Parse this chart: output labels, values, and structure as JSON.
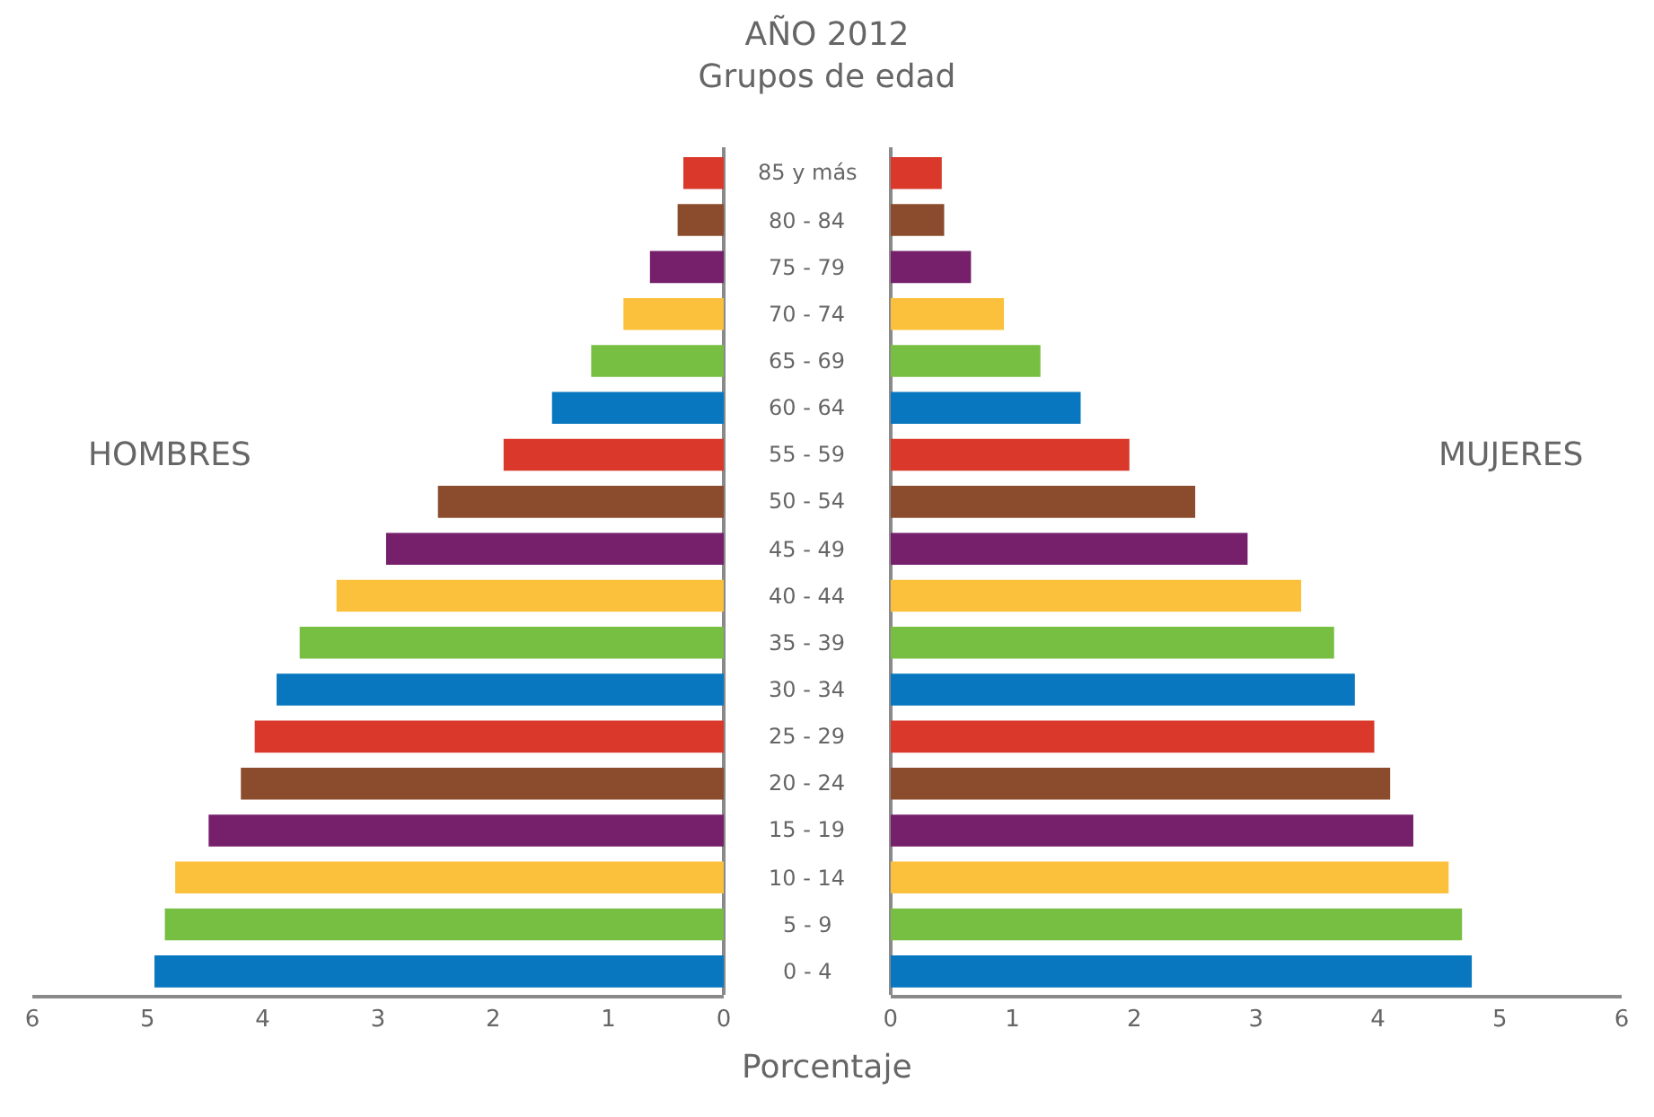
{
  "chart_data": [
    {
      "type": "bar",
      "orientation": "horizontal",
      "title": "AÑO 2012",
      "subtitle": "Grupos de edad",
      "categories": [
        "85 y más",
        "80 - 84",
        "75 - 79",
        "70 - 74",
        "65 - 69",
        "60 - 64",
        "55 - 59",
        "50 - 54",
        "45 - 49",
        "40 - 44",
        "35 - 39",
        "30 - 34",
        "25 - 29",
        "20 - 24",
        "15 - 19",
        "10 - 14",
        "5 - 9",
        "0 - 4"
      ],
      "values": [
        0.35,
        0.4,
        0.64,
        0.87,
        1.15,
        1.49,
        1.91,
        2.48,
        2.93,
        3.36,
        3.68,
        3.88,
        4.07,
        4.19,
        4.47,
        4.76,
        4.85,
        4.94
      ],
      "colors": [
        "#d9382a",
        "#8b4c2d",
        "#76206b",
        "#fbc13c",
        "#76bf43",
        "#0877bf",
        "#d9382a",
        "#8b4c2d",
        "#76206b",
        "#fbc13c",
        "#76bf43",
        "#0877bf",
        "#d9382a",
        "#8b4c2d",
        "#76206b",
        "#fbc13c",
        "#76bf43",
        "#0877bf"
      ],
      "xlim": [
        6,
        0
      ],
      "xticks": [
        6,
        5,
        4,
        3,
        2,
        1,
        0
      ],
      "annotations": [
        "HOMBRES"
      ]
    },
    {
      "type": "bar",
      "orientation": "horizontal",
      "xlabel": "Porcentaje",
      "categories": [
        "85 y más",
        "80 - 84",
        "75 - 79",
        "70 - 74",
        "65 - 69",
        "60 - 64",
        "55 - 59",
        "50 - 54",
        "45 - 49",
        "40 - 44",
        "35 - 39",
        "30 - 34",
        "25 - 29",
        "20 - 24",
        "15 - 19",
        "10 - 14",
        "5 - 9",
        "0 - 4"
      ],
      "values": [
        0.42,
        0.44,
        0.66,
        0.93,
        1.23,
        1.56,
        1.96,
        2.5,
        2.93,
        3.37,
        3.64,
        3.81,
        3.97,
        4.1,
        4.29,
        4.58,
        4.69,
        4.77
      ],
      "colors": [
        "#d9382a",
        "#8b4c2d",
        "#76206b",
        "#fbc13c",
        "#76bf43",
        "#0877bf",
        "#d9382a",
        "#8b4c2d",
        "#76206b",
        "#fbc13c",
        "#76bf43",
        "#0877bf",
        "#d9382a",
        "#8b4c2d",
        "#76206b",
        "#fbc13c",
        "#76bf43",
        "#0877bf"
      ],
      "xlim": [
        0,
        6
      ],
      "xticks": [
        0,
        1,
        2,
        3,
        4,
        5,
        6
      ],
      "tick_labels": "x",
      "annotations": [
        "MUJERES"
      ]
    }
  ]
}
